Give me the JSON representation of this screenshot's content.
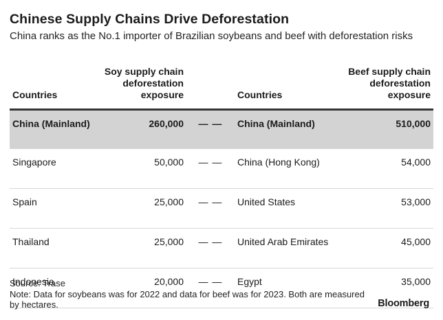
{
  "chart_data": {
    "type": "table",
    "title": "Chinese Supply Chains Drive Deforestation",
    "subtitle": "China ranks as the No.1 importer of Brazilian soybeans and beef with deforestation risks",
    "columns": [
      "Countries",
      "Soy supply chain deforestation exposure",
      "Countries",
      "Beef supply chain deforestation exposure"
    ],
    "rows": [
      {
        "soy_country": "China (Mainland)",
        "soy_value": "260,000",
        "beef_country": "China (Mainland)",
        "beef_value": "510,000",
        "highlight": true
      },
      {
        "soy_country": "Singapore",
        "soy_value": "50,000",
        "beef_country": "China (Hong Kong)",
        "beef_value": "54,000",
        "highlight": false
      },
      {
        "soy_country": "Spain",
        "soy_value": "25,000",
        "beef_country": "United States",
        "beef_value": "53,000",
        "highlight": false
      },
      {
        "soy_country": "Thailand",
        "soy_value": "25,000",
        "beef_country": "United Arab Emirates",
        "beef_value": "45,000",
        "highlight": false
      },
      {
        "soy_country": "Indonesia",
        "soy_value": "20,000",
        "beef_country": "Egypt",
        "beef_value": "35,000",
        "highlight": false
      }
    ],
    "soy_series": {
      "name": "Soy supply chain deforestation exposure",
      "categories": [
        "China (Mainland)",
        "Singapore",
        "Spain",
        "Thailand",
        "Indonesia"
      ],
      "values": [
        260000,
        50000,
        25000,
        25000,
        20000
      ]
    },
    "beef_series": {
      "name": "Beef supply chain deforestation exposure",
      "categories": [
        "China (Mainland)",
        "China (Hong Kong)",
        "United States",
        "United Arab Emirates",
        "Egypt"
      ],
      "values": [
        510000,
        54000,
        53000,
        45000,
        35000
      ]
    },
    "connector": "— —",
    "highlight_color": "#d3d3d3"
  },
  "footer": {
    "source": "Source: Trase",
    "note": "Note: Data for soybeans was for 2022 and data for beef was for 2023. Both are measured by hectares.",
    "brand": "Bloomberg"
  }
}
